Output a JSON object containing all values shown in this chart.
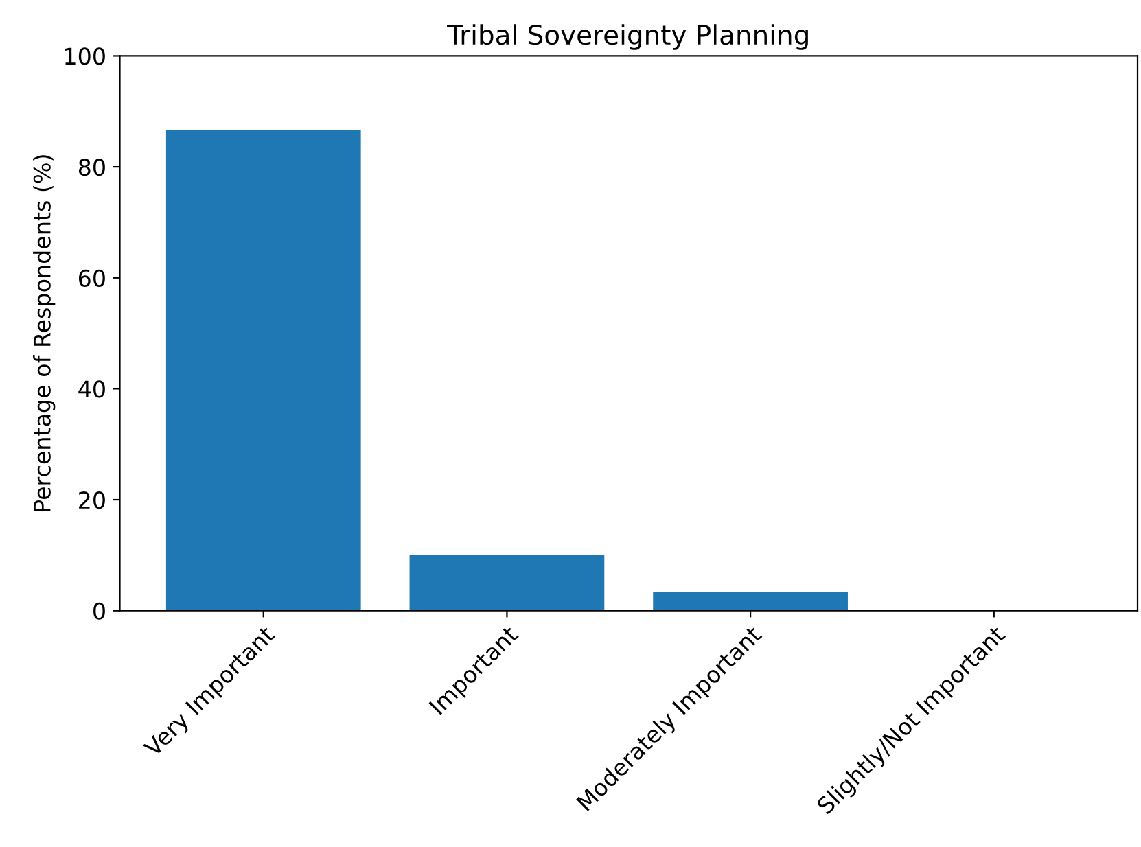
{
  "chart_data": {
    "type": "bar",
    "title": "Tribal Sovereignty Planning",
    "ylabel": "Percentage of Respondents (%)",
    "categories": [
      "Very Important",
      "Important",
      "Moderately Important",
      "Slightly/Not Important"
    ],
    "values": [
      86.7,
      10.0,
      3.3,
      0.0
    ],
    "color": "#1f77b4",
    "ylim": [
      0,
      100
    ],
    "yticks": [
      0,
      20,
      40,
      60,
      80,
      100
    ],
    "grid": false
  }
}
